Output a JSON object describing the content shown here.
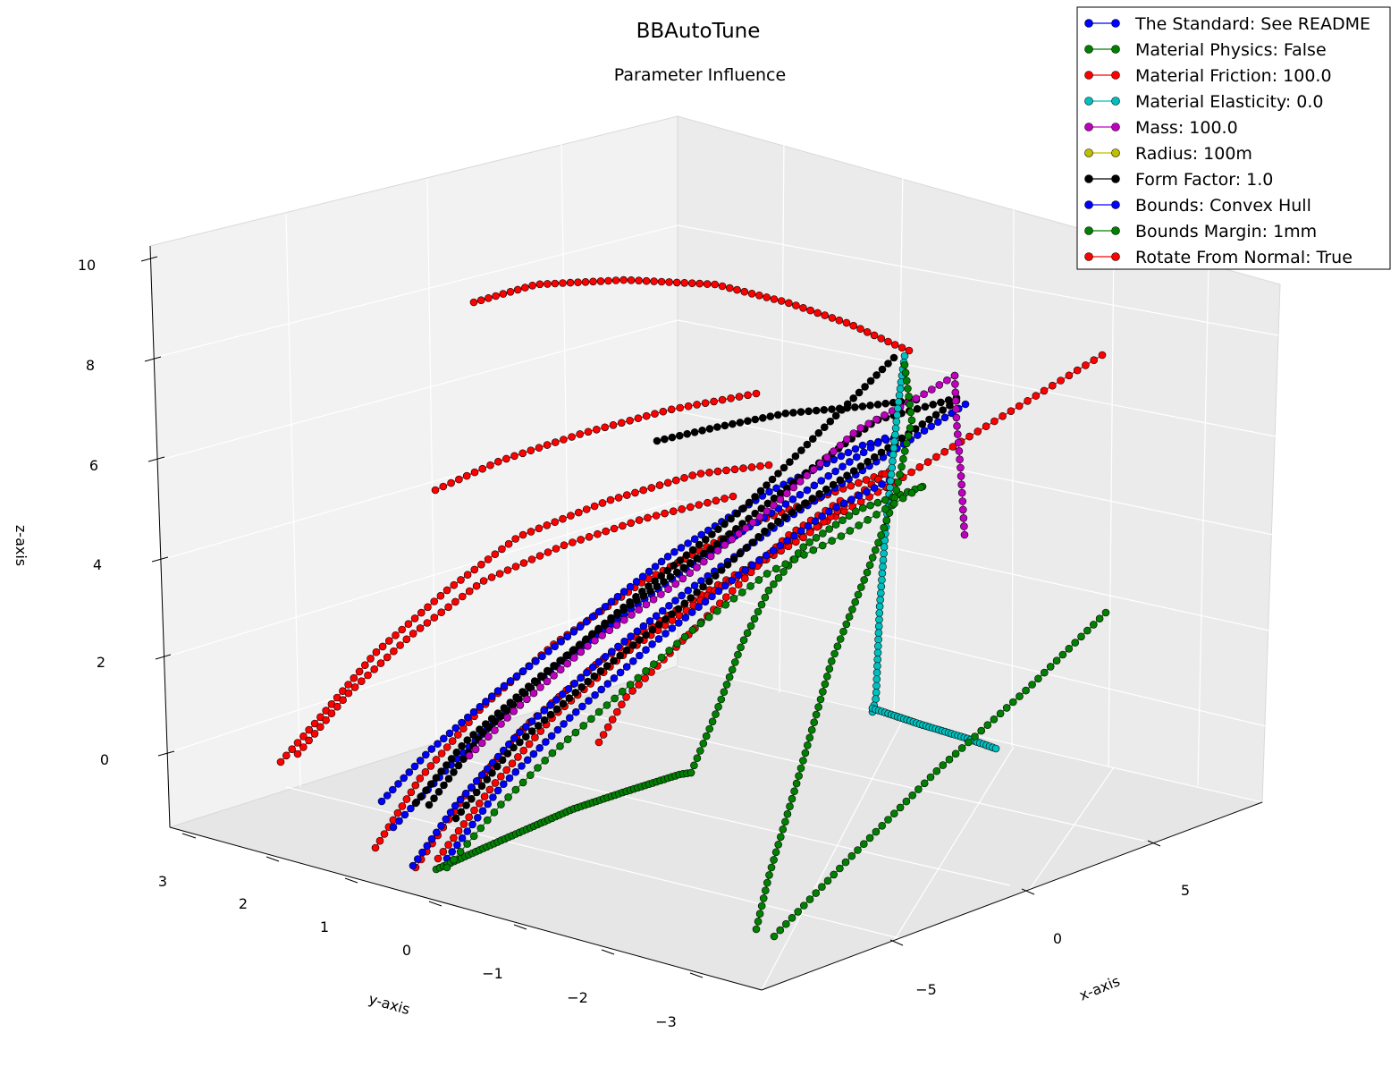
{
  "chart_data": {
    "type": "line3d",
    "title": "BBAutoTune",
    "subtitle": "Parameter Influence",
    "xlabel": "x-axis",
    "ylabel": "y-axis",
    "zlabel": "z-axis",
    "xlim": [
      -10,
      10
    ],
    "ylim": [
      -3.5,
      3.5
    ],
    "zlim": [
      -1,
      10
    ],
    "xticks": [
      "−5",
      "0",
      "5"
    ],
    "yticks": [
      "3",
      "2",
      "1",
      "0",
      "−1",
      "−2",
      "−3"
    ],
    "zticks": [
      "10",
      "8",
      "6",
      "4",
      "2",
      "0"
    ],
    "grid": true,
    "legend_position": "top-right",
    "series": [
      {
        "name": "The Standard: See README",
        "color": "#0000ff"
      },
      {
        "name": "Material Physics: False",
        "color": "#008000"
      },
      {
        "name": "Material Friction: 100.0",
        "color": "#ff0000"
      },
      {
        "name": "Material Elasticity: 0.0",
        "color": "#00bfbf"
      },
      {
        "name": "Mass: 100.0",
        "color": "#bf00bf"
      },
      {
        "name": "Radius: 100m",
        "color": "#bfbf00"
      },
      {
        "name": "Form Factor: 1.0",
        "color": "#000000"
      },
      {
        "name": "Bounds: Convex Hull",
        "color": "#0000ff"
      },
      {
        "name": "Bounds Margin: 1mm",
        "color": "#008000"
      },
      {
        "name": "Rotate From Normal: True",
        "color": "#ff0000"
      }
    ]
  }
}
